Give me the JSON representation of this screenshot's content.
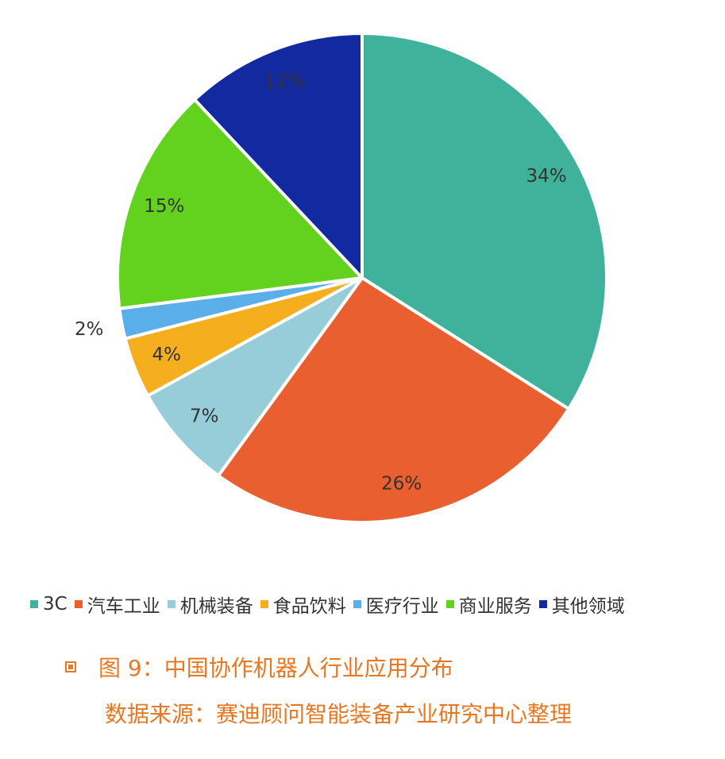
{
  "chart_data": {
    "type": "pie",
    "categories": [
      "3C",
      "汽车工业",
      "机械装备",
      "食品饮料",
      "医疗行业",
      "商业服务",
      "其他领域"
    ],
    "values": [
      34,
      26,
      7,
      4,
      2,
      15,
      12
    ],
    "labels": [
      "34%",
      "26%",
      "7%",
      "4%",
      "2%",
      "15%",
      "12%"
    ],
    "colors": [
      "#40B29C",
      "#E95F2F",
      "#96CDD9",
      "#F5AE1E",
      "#5AAEEA",
      "#62D21F",
      "#1329A0"
    ],
    "legend_position": "bottom"
  },
  "caption": {
    "title": "图 9：中国协作机器人行业应用分布",
    "source": "数据来源：赛迪顾问智能装备产业研究中心整理"
  }
}
